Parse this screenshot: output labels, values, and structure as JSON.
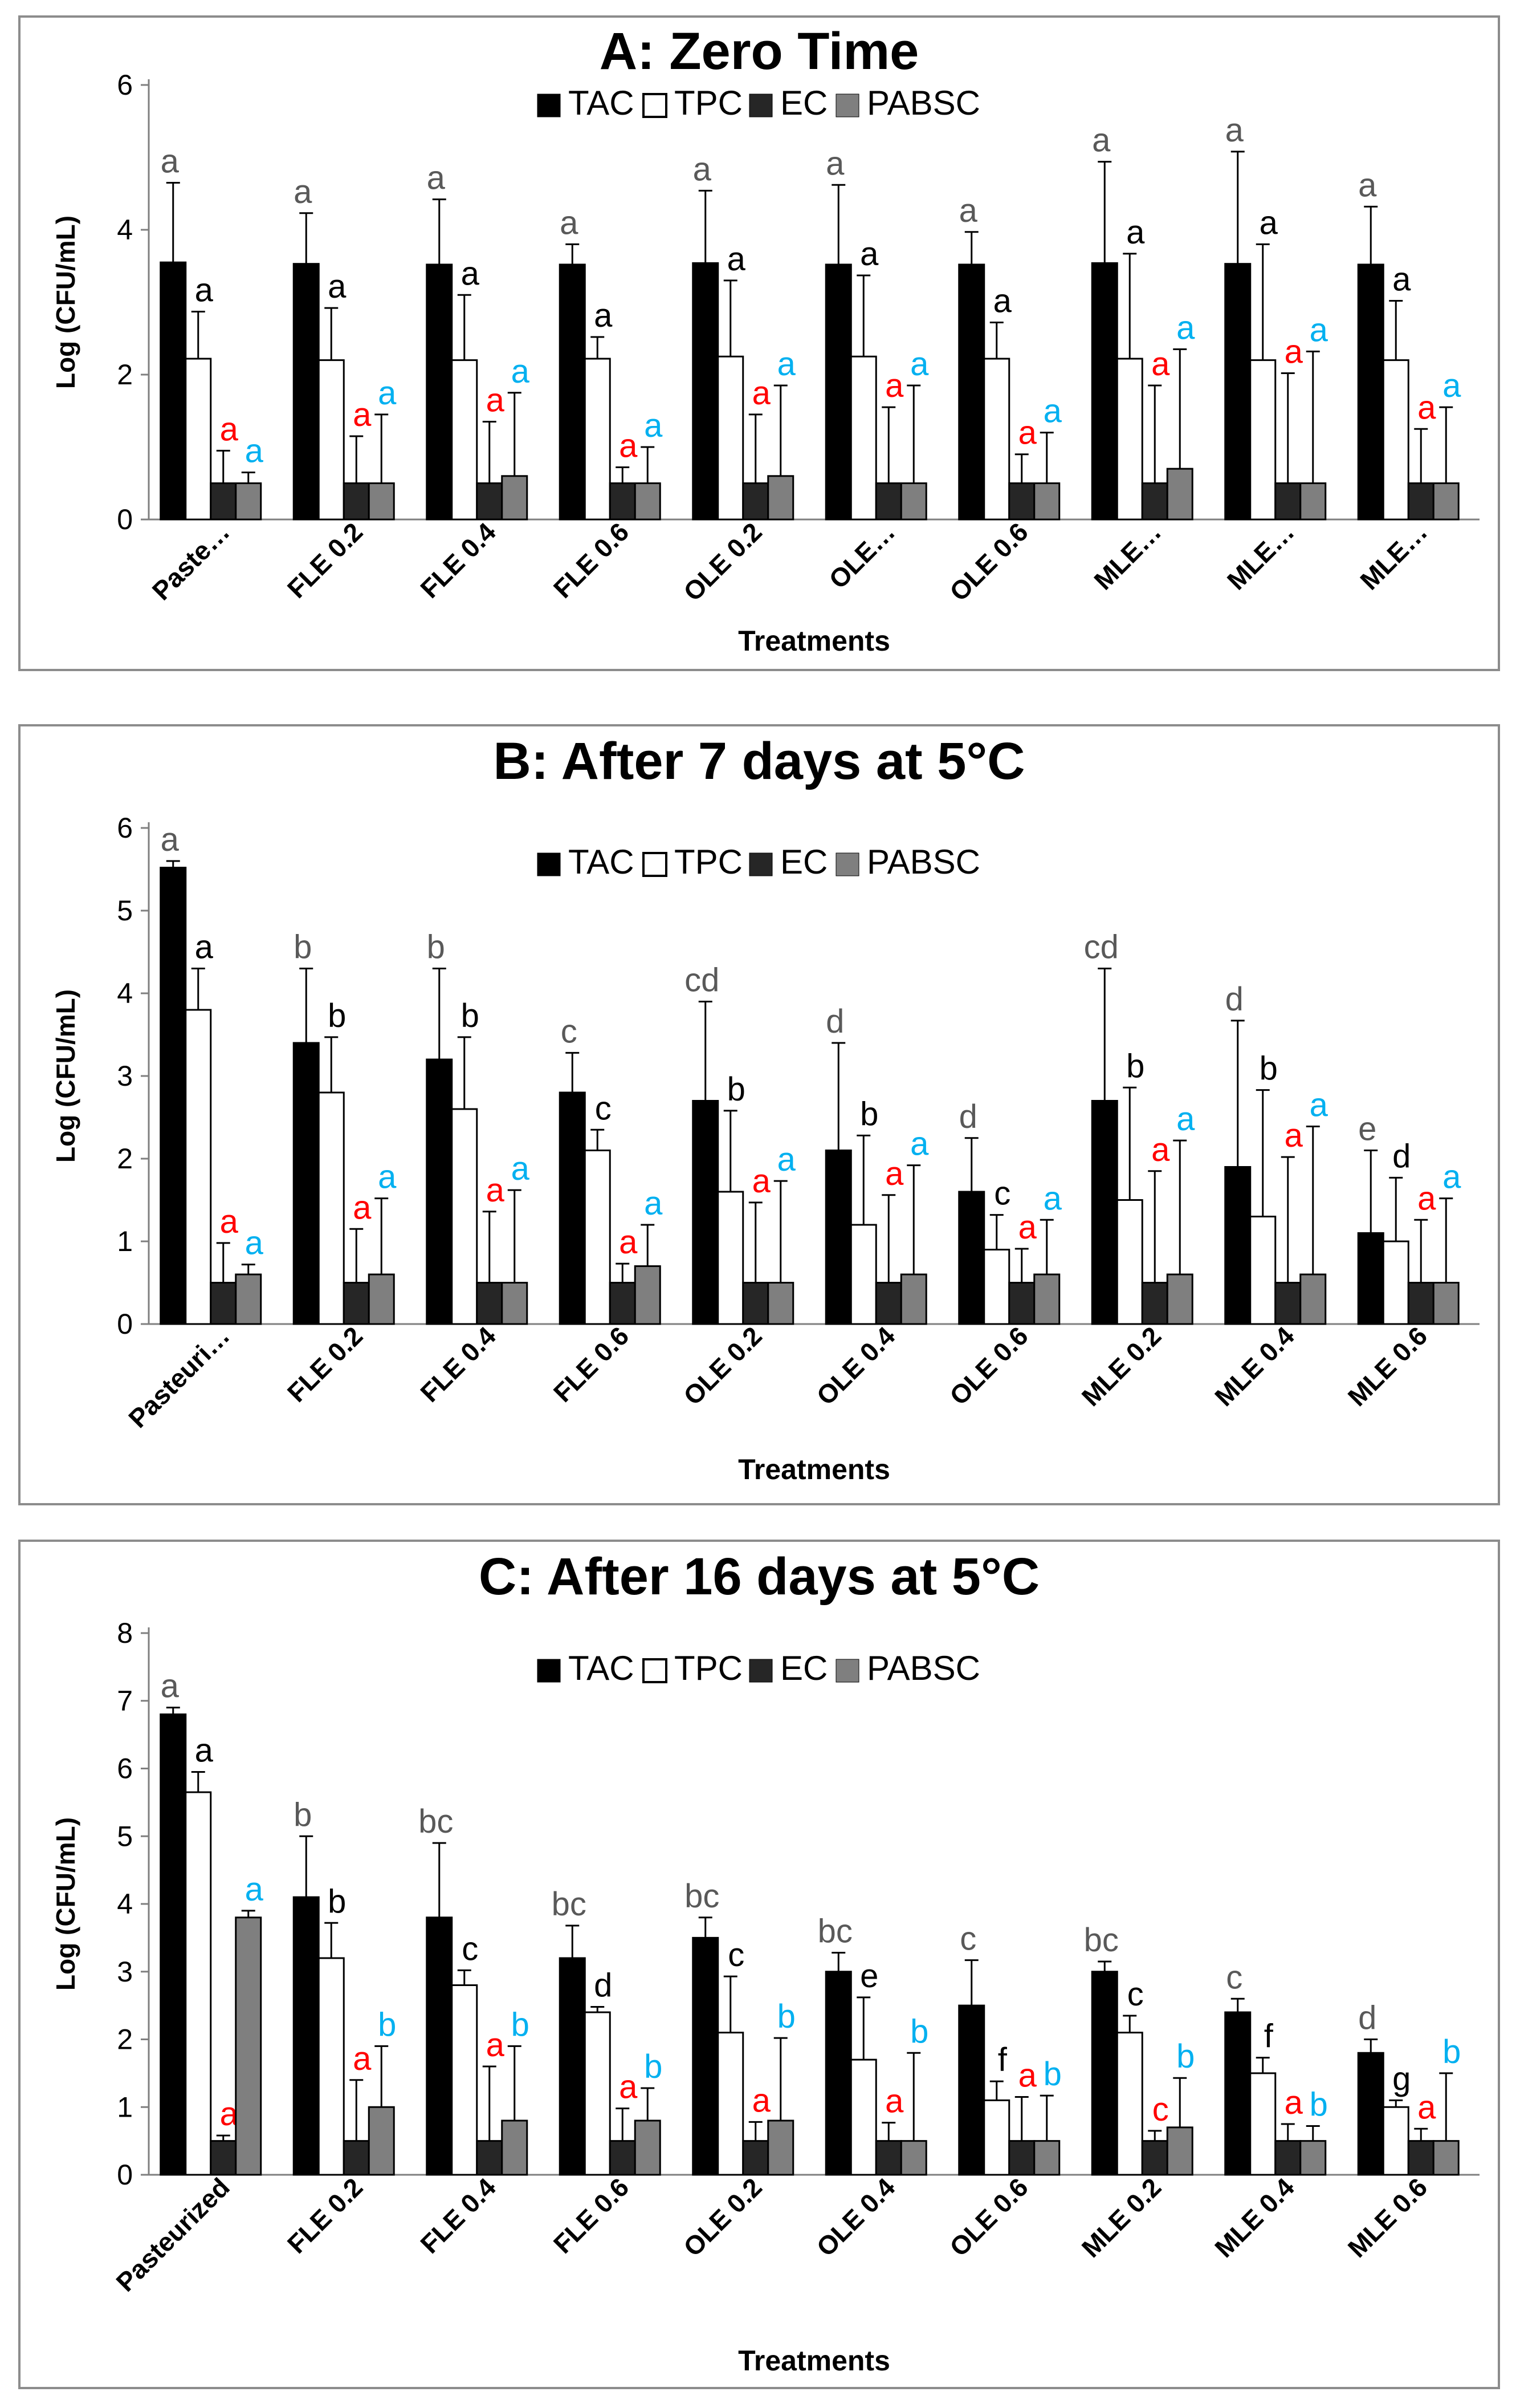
{
  "colors": {
    "TAC": "#000000",
    "TPC": "#ffffff",
    "EC": "#262626",
    "PABSC": "#7f7f7f",
    "letter_tac": "#595959",
    "letter_tpc": "#000000",
    "letter_ec": "#ff0000",
    "letter_pabsc": "#00b0f0"
  },
  "chart_data": [
    {
      "type": "bar",
      "title": "A: Zero Time",
      "xlabel": "Treatments",
      "ylabel": "Log (CFU/mL)",
      "ylim": [
        0,
        6
      ],
      "yticks": [
        0,
        2,
        4,
        6
      ],
      "legend": "top-center",
      "categories": [
        "Paste…",
        "FLE 0.2",
        "FLE 0.4",
        "FLE 0.6",
        "OLE 0.2",
        "OLE…",
        "OLE 0.6",
        "MLE…",
        "MLE…",
        "MLE…"
      ],
      "series": [
        {
          "name": "TAC",
          "values": [
            3.55,
            3.53,
            3.52,
            3.52,
            3.54,
            3.52,
            3.52,
            3.54,
            3.53,
            3.52
          ],
          "error": [
            1.1,
            0.7,
            0.9,
            0.28,
            1.0,
            1.1,
            0.45,
            1.4,
            1.55,
            0.8
          ],
          "letters": [
            "a",
            "a",
            "a",
            "a",
            "a",
            "a",
            "a",
            "a",
            "a",
            "a"
          ]
        },
        {
          "name": "TPC",
          "values": [
            2.22,
            2.2,
            2.2,
            2.22,
            2.25,
            2.25,
            2.22,
            2.22,
            2.2,
            2.2
          ],
          "error": [
            0.65,
            0.72,
            0.9,
            0.3,
            1.05,
            1.12,
            0.5,
            1.45,
            1.6,
            0.82
          ],
          "letters": [
            "a",
            "a",
            "a",
            "a",
            "a",
            "a",
            "a",
            "a",
            "a",
            "a"
          ]
        },
        {
          "name": "EC",
          "values": [
            0.5,
            0.5,
            0.5,
            0.5,
            0.5,
            0.5,
            0.5,
            0.5,
            0.5,
            0.5
          ],
          "error": [
            0.45,
            0.65,
            0.85,
            0.22,
            0.95,
            1.05,
            0.4,
            1.35,
            1.52,
            0.75
          ],
          "letters": [
            "a",
            "a",
            "a",
            "a",
            "a",
            "a",
            "a",
            "a",
            "a",
            "a"
          ]
        },
        {
          "name": "PABSC",
          "values": [
            0.5,
            0.5,
            0.6,
            0.5,
            0.6,
            0.5,
            0.5,
            0.7,
            0.5,
            0.5
          ],
          "error": [
            0.15,
            0.95,
            1.15,
            0.5,
            1.25,
            1.35,
            0.7,
            1.65,
            1.82,
            1.05
          ],
          "letters": [
            "a",
            "a",
            "a",
            "a",
            "a",
            "a",
            "a",
            "a",
            "a",
            "a"
          ]
        }
      ]
    },
    {
      "type": "bar",
      "title": "B: After 7 days at 5°C",
      "xlabel": "Treatments",
      "ylabel": "Log (CFU/mL)",
      "ylim": [
        0,
        6
      ],
      "yticks": [
        0,
        1,
        2,
        3,
        4,
        5,
        6
      ],
      "legend": "top-center",
      "categories": [
        "Pasteuri…",
        "FLE 0.2",
        "FLE 0.4",
        "FLE 0.6",
        "OLE 0.2",
        "OLE 0.4",
        "OLE 0.6",
        "MLE 0.2",
        "MLE 0.4",
        "MLE 0.6"
      ],
      "series": [
        {
          "name": "TAC",
          "values": [
            5.52,
            3.4,
            3.2,
            2.8,
            2.7,
            2.1,
            1.6,
            2.7,
            1.9,
            1.1
          ],
          "error": [
            0.08,
            0.9,
            1.1,
            0.48,
            1.2,
            1.3,
            0.65,
            1.6,
            1.77,
            1.0
          ],
          "letters": [
            "a",
            "b",
            "b",
            "c",
            "cd",
            "d",
            "d",
            "cd",
            "d",
            "e"
          ]
        },
        {
          "name": "TPC",
          "values": [
            3.8,
            2.8,
            2.6,
            2.1,
            1.6,
            1.2,
            0.9,
            1.5,
            1.3,
            1.0
          ],
          "error": [
            0.5,
            0.67,
            0.87,
            0.25,
            0.98,
            1.08,
            0.42,
            1.36,
            1.53,
            0.77
          ],
          "letters": [
            "a",
            "b",
            "b",
            "c",
            "b",
            "b",
            "c",
            "b",
            "b",
            "d"
          ]
        },
        {
          "name": "EC",
          "values": [
            0.5,
            0.5,
            0.5,
            0.5,
            0.5,
            0.5,
            0.5,
            0.5,
            0.5,
            0.5
          ],
          "error": [
            0.48,
            0.65,
            0.86,
            0.23,
            0.97,
            1.06,
            0.41,
            1.35,
            1.52,
            0.76
          ],
          "letters": [
            "a",
            "a",
            "a",
            "a",
            "a",
            "a",
            "a",
            "a",
            "a",
            "a"
          ]
        },
        {
          "name": "PABSC",
          "values": [
            0.6,
            0.6,
            0.5,
            0.7,
            0.5,
            0.6,
            0.6,
            0.6,
            0.6,
            0.5
          ],
          "error": [
            0.12,
            0.92,
            1.12,
            0.5,
            1.23,
            1.32,
            0.66,
            1.62,
            1.79,
            1.02
          ],
          "letters": [
            "a",
            "a",
            "a",
            "a",
            "a",
            "a",
            "a",
            "a",
            "a",
            "a"
          ]
        }
      ]
    },
    {
      "type": "bar",
      "title": "C: After 16 days at 5°C",
      "xlabel": "Treatments",
      "ylabel": "Log (CFU/mL)",
      "ylim": [
        0,
        8
      ],
      "yticks": [
        0,
        1,
        2,
        3,
        4,
        5,
        6,
        7,
        8
      ],
      "legend": "top-center",
      "categories": [
        "Pasteurized",
        "FLE 0.2",
        "FLE 0.4",
        "FLE 0.6",
        "OLE 0.2",
        "OLE 0.4",
        "OLE 0.6",
        "MLE 0.2",
        "MLE 0.4",
        "MLE 0.6"
      ],
      "series": [
        {
          "name": "TAC",
          "values": [
            6.8,
            4.1,
            3.8,
            3.2,
            3.5,
            3.0,
            2.5,
            3.0,
            2.4,
            1.8
          ],
          "error": [
            0.1,
            0.9,
            1.1,
            0.48,
            0.3,
            0.28,
            0.67,
            0.15,
            0.2,
            0.2
          ],
          "letters": [
            "a",
            "b",
            "bc",
            "bc",
            "bc",
            "bc",
            "c",
            "bc",
            "c",
            "d"
          ]
        },
        {
          "name": "TPC",
          "values": [
            5.65,
            3.2,
            2.8,
            2.4,
            2.1,
            1.7,
            1.1,
            2.1,
            1.5,
            1.0
          ],
          "error": [
            0.3,
            0.52,
            0.22,
            0.08,
            0.83,
            0.92,
            0.28,
            0.25,
            0.23,
            0.1
          ],
          "letters": [
            "a",
            "b",
            "c",
            "d",
            "c",
            "e",
            "f",
            "c",
            "f",
            "g"
          ]
        },
        {
          "name": "EC",
          "values": [
            0.5,
            0.5,
            0.5,
            0.5,
            0.5,
            0.5,
            0.5,
            0.5,
            0.5,
            0.5
          ],
          "error": [
            0.08,
            0.9,
            1.1,
            0.48,
            0.28,
            0.27,
            0.65,
            0.15,
            0.25,
            0.18
          ],
          "letters": [
            "a",
            "a",
            "a",
            "a",
            "a",
            "a",
            "a",
            "c",
            "a",
            "a"
          ]
        },
        {
          "name": "PABSC",
          "values": [
            3.8,
            1.0,
            0.8,
            0.8,
            0.8,
            0.5,
            0.5,
            0.7,
            0.5,
            0.5
          ],
          "error": [
            0.1,
            0.9,
            1.1,
            0.48,
            1.22,
            1.3,
            0.67,
            0.73,
            0.22,
            1.0
          ],
          "letters": [
            "a",
            "b",
            "b",
            "b",
            "b",
            "b",
            "b",
            "b",
            "b",
            "b"
          ]
        }
      ]
    }
  ]
}
